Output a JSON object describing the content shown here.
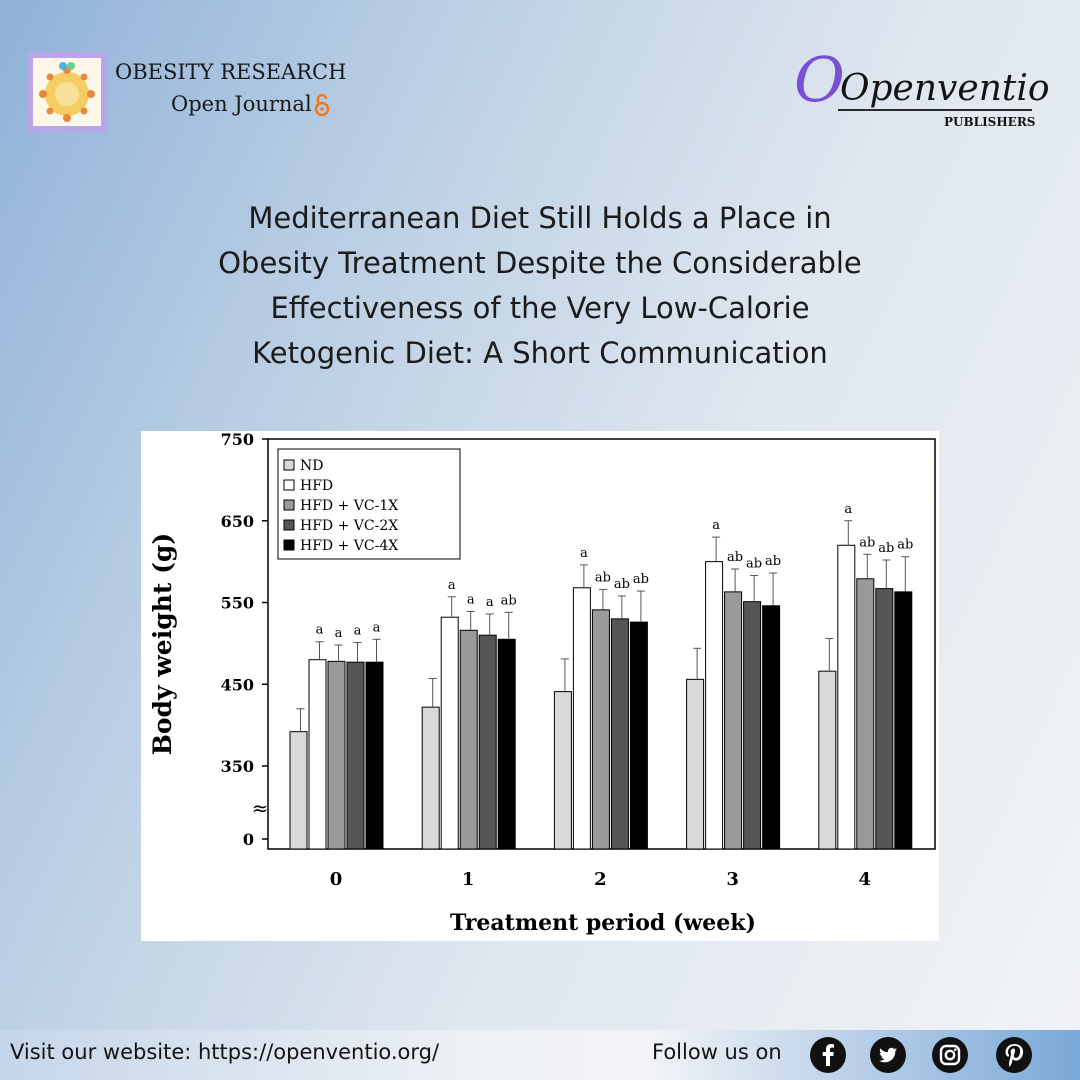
{
  "header": {
    "journal_line1": "OBESITY RESEARCH",
    "journal_line2": "Open Journal",
    "publisher_name": "Openventio",
    "publisher_sub": "PUBLISHERS"
  },
  "title_lines": [
    "Mediterranean Diet Still Holds a Place in",
    "Obesity Treatment Despite the Considerable",
    "Effectiveness of the Very Low-Calorie",
    "Ketogenic Diet: A Short Communication"
  ],
  "chart_data": {
    "type": "bar",
    "xlabel": "Treatment period (week)",
    "ylabel": "Body weight (g)",
    "categories": [
      "0",
      "1",
      "2",
      "3",
      "4"
    ],
    "y_ticks": [
      "750",
      "650",
      "550",
      "450",
      "350",
      "0"
    ],
    "y_tick_values": [
      750,
      650,
      550,
      450,
      350,
      300
    ],
    "axis_break": "≈",
    "ylim": [
      300,
      750
    ],
    "legend_position": "top-left",
    "colors": [
      "#d9d9d9",
      "#ffffff",
      "#9a9a9a",
      "#555555",
      "#000000"
    ],
    "series": [
      {
        "name": "ND",
        "values": [
          392,
          422,
          441,
          456,
          466
        ],
        "errors": [
          28,
          35,
          40,
          38,
          40
        ],
        "labels": [
          "",
          "",
          "",
          "",
          ""
        ]
      },
      {
        "name": "HFD",
        "values": [
          480,
          532,
          568,
          600,
          620
        ],
        "errors": [
          22,
          25,
          28,
          30,
          30
        ],
        "labels": [
          "a",
          "a",
          "a",
          "a",
          "a"
        ]
      },
      {
        "name": "HFD + VC-1X",
        "values": [
          478,
          516,
          541,
          563,
          579
        ],
        "errors": [
          20,
          23,
          25,
          28,
          30
        ],
        "labels": [
          "a",
          "a",
          "ab",
          "ab",
          "ab"
        ]
      },
      {
        "name": "HFD + VC-2X",
        "values": [
          477,
          510,
          530,
          551,
          567
        ],
        "errors": [
          24,
          26,
          28,
          32,
          35
        ],
        "labels": [
          "a",
          "a",
          "ab",
          "ab",
          "ab"
        ]
      },
      {
        "name": "HFD + VC-4X",
        "values": [
          477,
          505,
          526,
          546,
          563
        ],
        "errors": [
          28,
          33,
          38,
          40,
          43
        ],
        "labels": [
          "a",
          "ab",
          "ab",
          "ab",
          "ab"
        ]
      }
    ]
  },
  "footer": {
    "website": "Visit our website: https://openventio.org/",
    "follow": "Follow us on",
    "social": [
      "facebook-icon",
      "twitter-icon",
      "instagram-icon",
      "pinterest-icon"
    ]
  }
}
